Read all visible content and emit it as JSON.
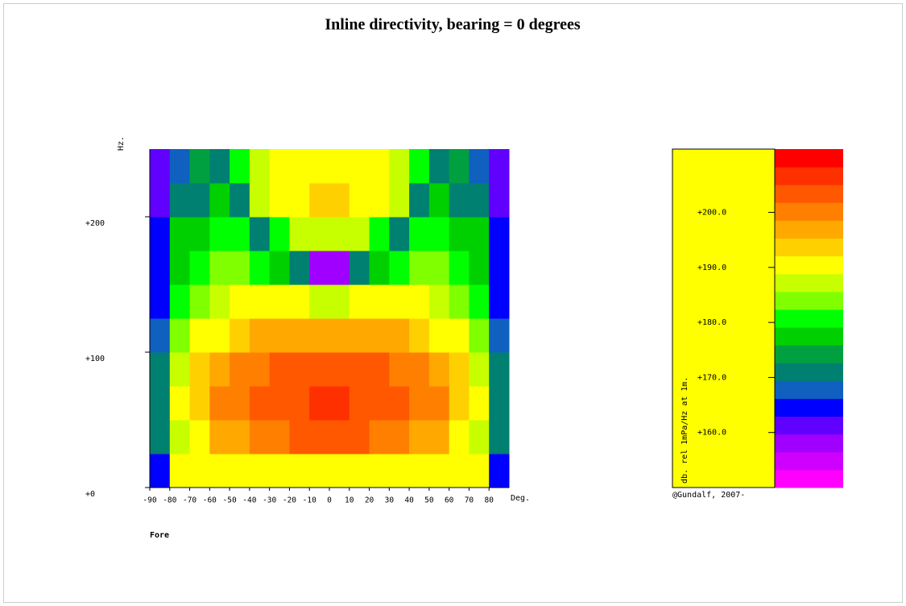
{
  "chart_data": {
    "type": "heatmap",
    "title": "Inline directivity, bearing  = 0 degrees",
    "x_label": "Deg.",
    "y_label": "Hz.",
    "note": "Fore",
    "credit": "@Gundalf, 2007-",
    "colorbar_label": "db. rel 1mPa/Hz at 1m.",
    "xlim": [
      -90,
      90
    ],
    "xticks": [
      -90,
      -80,
      -70,
      -60,
      -50,
      -40,
      -30,
      -20,
      -10,
      0,
      10,
      20,
      30,
      40,
      50,
      60,
      70,
      80
    ],
    "ylim": [
      0,
      250
    ],
    "yticks": [
      {
        "value": 0,
        "label": "+0"
      },
      {
        "value": 100,
        "label": "+100"
      },
      {
        "value": 200,
        "label": "+200"
      }
    ],
    "x_bins": [
      -90,
      -80,
      -70,
      -60,
      -50,
      -40,
      -30,
      -20,
      -10,
      0,
      10,
      20,
      30,
      40,
      50,
      60,
      70,
      80,
      90
    ],
    "y_bins": [
      0,
      25,
      50,
      75,
      100,
      125,
      150,
      175,
      200,
      225,
      250
    ],
    "z": [
      [
        165,
        190,
        190,
        190,
        190,
        190,
        190,
        190,
        190,
        190,
        190,
        190,
        190,
        190,
        190,
        190,
        190,
        165
      ],
      [
        170,
        188,
        192,
        196,
        198,
        200,
        201,
        202,
        202,
        202,
        202,
        201,
        200,
        198,
        196,
        192,
        188,
        170
      ],
      [
        170,
        190,
        195,
        199,
        201,
        203,
        204,
        205,
        206,
        206,
        205,
        204,
        203,
        201,
        199,
        195,
        190,
        170
      ],
      [
        170,
        188,
        193,
        197,
        200,
        201,
        202,
        203,
        203,
        203,
        203,
        202,
        201,
        200,
        197,
        193,
        188,
        170
      ],
      [
        168,
        184,
        189,
        192,
        195,
        196,
        197,
        197,
        197,
        197,
        197,
        197,
        196,
        195,
        192,
        189,
        184,
        168
      ],
      [
        166,
        180,
        185,
        187,
        189,
        190,
        190,
        189,
        188,
        188,
        189,
        190,
        190,
        189,
        187,
        185,
        180,
        166
      ],
      [
        164,
        178,
        181,
        183,
        184,
        182,
        178,
        170,
        158,
        158,
        170,
        178,
        182,
        184,
        183,
        181,
        178,
        164
      ],
      [
        163,
        176,
        178,
        180,
        180,
        172,
        180,
        186,
        188,
        188,
        186,
        180,
        172,
        180,
        180,
        178,
        176,
        163
      ],
      [
        162,
        172,
        170,
        178,
        172,
        186,
        190,
        192,
        193,
        193,
        192,
        190,
        186,
        172,
        178,
        170,
        172,
        162
      ],
      [
        160,
        168,
        174,
        170,
        182,
        188,
        190,
        191,
        190,
        190,
        191,
        190,
        188,
        182,
        170,
        174,
        168,
        160
      ]
    ],
    "clim": [
      150,
      211.5
    ],
    "cticks": [
      {
        "value": 160,
        "label": "+160.0"
      },
      {
        "value": 170,
        "label": "+170.0"
      },
      {
        "value": 180,
        "label": "+180.0"
      },
      {
        "value": 190,
        "label": "+190.0"
      },
      {
        "value": 200,
        "label": "+200.0"
      }
    ],
    "colormap": [
      "#ff00ff",
      "#d000ff",
      "#a000ff",
      "#6000ff",
      "#0000ff",
      "#1060c0",
      "#008070",
      "#00a040",
      "#00d000",
      "#00ff00",
      "#80ff00",
      "#c8ff00",
      "#ffff00",
      "#ffd000",
      "#ffa800",
      "#ff8000",
      "#ff5800",
      "#ff3000",
      "#ff0000"
    ],
    "panel_color": "#ffff00",
    "note_color": "#ff0000",
    "credit_color": "#ff00ff"
  }
}
